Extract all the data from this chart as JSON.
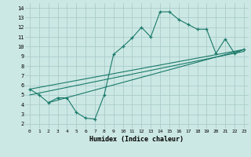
{
  "xlabel": "Humidex (Indice chaleur)",
  "bg_color": "#cce8e4",
  "grid_color": "#aacccc",
  "line_color": "#1a7a6a",
  "xlim": [
    -0.5,
    23.5
  ],
  "ylim": [
    1.5,
    14.5
  ],
  "xticks": [
    0,
    1,
    2,
    3,
    4,
    5,
    6,
    7,
    8,
    9,
    10,
    11,
    12,
    13,
    14,
    15,
    16,
    17,
    18,
    19,
    20,
    21,
    22,
    23
  ],
  "yticks": [
    2,
    3,
    4,
    5,
    6,
    7,
    8,
    9,
    10,
    11,
    12,
    13,
    14
  ],
  "zigzag_x": [
    0,
    1,
    2,
    3,
    4,
    5,
    6,
    7,
    8,
    9,
    10,
    11,
    12,
    13,
    14,
    15,
    16,
    17,
    18,
    19,
    20,
    21,
    22,
    23
  ],
  "zigzag_y": [
    5.6,
    5.0,
    4.2,
    4.7,
    4.7,
    3.2,
    2.6,
    2.5,
    5.0,
    9.2,
    10.0,
    10.9,
    12.0,
    11.0,
    13.6,
    13.6,
    12.8,
    12.3,
    11.8,
    11.8,
    9.3,
    10.8,
    9.3,
    9.7
  ],
  "line1_x": [
    0,
    23
  ],
  "line1_y": [
    5.6,
    9.7
  ],
  "line2_x": [
    0,
    23
  ],
  "line2_y": [
    5.0,
    9.5
  ],
  "line3_x": [
    2,
    23
  ],
  "line3_y": [
    4.2,
    9.7
  ]
}
